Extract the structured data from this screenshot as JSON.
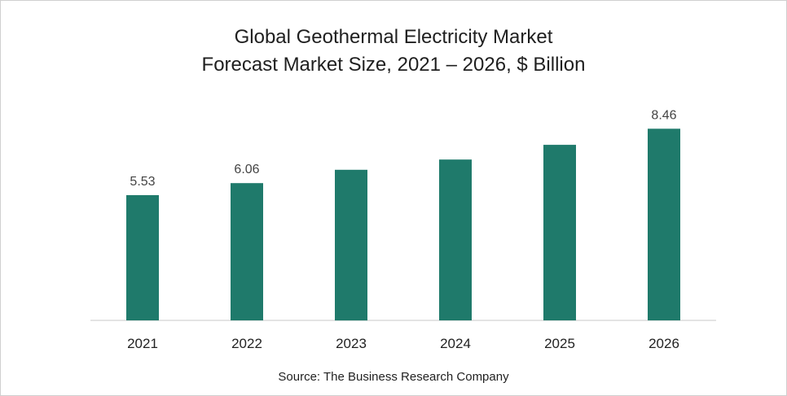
{
  "chart_data": {
    "type": "bar",
    "title_line1": "Global Geothermal Electricity Market",
    "title_line2": "Forecast Market Size, 2021 – 2026, $ Billion",
    "categories": [
      "2021",
      "2022",
      "2023",
      "2024",
      "2025",
      "2026"
    ],
    "values": [
      5.53,
      6.06,
      6.65,
      7.1,
      7.75,
      8.46
    ],
    "data_labels": [
      "5.53",
      "6.06",
      "",
      "",
      "",
      "8.46"
    ],
    "xlabel": "",
    "ylabel": "",
    "ylim": [
      0,
      9.8
    ],
    "grid": false,
    "legend": "none",
    "bar_color": "#1f7a6b"
  },
  "footer": {
    "source": "Source: The Business Research Company"
  }
}
